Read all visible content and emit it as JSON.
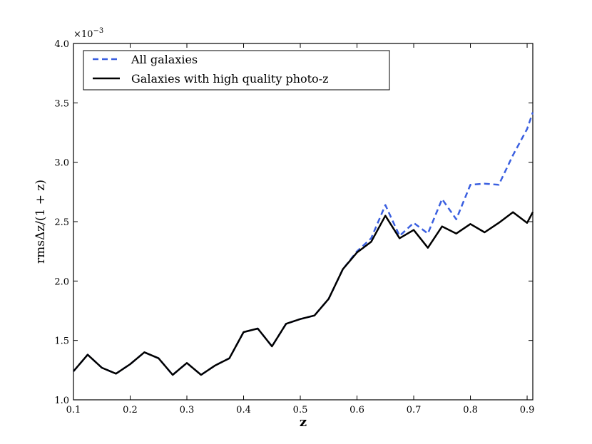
{
  "chart_data": {
    "type": "line",
    "xlabel": "z",
    "ylabel": "rmsΔz/(1 + z)",
    "y_multiplier": "×10",
    "y_multiplier_exp": "−3",
    "xlim": [
      0.1,
      0.91
    ],
    "ylim": [
      1.0,
      4.0
    ],
    "x_ticks": [
      "0.1",
      "0.2",
      "0.3",
      "0.4",
      "0.5",
      "0.6",
      "0.7",
      "0.8",
      "0.9"
    ],
    "y_ticks": [
      "1.0",
      "1.5",
      "2.0",
      "2.5",
      "3.0",
      "3.5",
      "4.0"
    ],
    "grid": false,
    "legend_position": "top-left",
    "x": [
      0.1,
      0.125,
      0.15,
      0.175,
      0.2,
      0.225,
      0.25,
      0.275,
      0.3,
      0.325,
      0.35,
      0.375,
      0.4,
      0.425,
      0.45,
      0.475,
      0.5,
      0.525,
      0.55,
      0.575,
      0.6,
      0.625,
      0.65,
      0.675,
      0.7,
      0.725,
      0.75,
      0.775,
      0.8,
      0.825,
      0.85,
      0.875,
      0.9,
      0.91
    ],
    "series": [
      {
        "name": "All galaxies",
        "color": "#3a5fe0",
        "style": "dashed",
        "values": [
          1.24,
          1.38,
          1.27,
          1.22,
          1.3,
          1.4,
          1.35,
          1.21,
          1.31,
          1.21,
          1.29,
          1.35,
          1.57,
          1.6,
          1.45,
          1.64,
          1.68,
          1.71,
          1.85,
          2.1,
          2.25,
          2.36,
          2.64,
          2.38,
          2.49,
          2.4,
          2.69,
          2.52,
          2.81,
          2.82,
          2.81,
          3.06,
          3.28,
          3.42
        ]
      },
      {
        "name": "Galaxies with high quality photo-z",
        "color": "#000000",
        "style": "solid",
        "values": [
          1.24,
          1.38,
          1.27,
          1.22,
          1.3,
          1.4,
          1.35,
          1.21,
          1.31,
          1.21,
          1.29,
          1.35,
          1.57,
          1.6,
          1.45,
          1.64,
          1.68,
          1.71,
          1.85,
          2.1,
          2.24,
          2.33,
          2.55,
          2.36,
          2.43,
          2.28,
          2.46,
          2.4,
          2.48,
          2.41,
          2.49,
          2.58,
          2.49,
          2.58
        ]
      }
    ]
  }
}
